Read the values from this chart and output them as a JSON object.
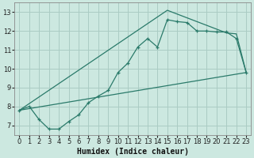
{
  "xlabel": "Humidex (Indice chaleur)",
  "background_color": "#cce8e0",
  "grid_color": "#aaccc4",
  "line_color": "#2a7a6a",
  "xlim": [
    -0.5,
    23.5
  ],
  "ylim": [
    6.5,
    13.5
  ],
  "xticks": [
    0,
    1,
    2,
    3,
    4,
    5,
    6,
    7,
    8,
    9,
    10,
    11,
    12,
    13,
    14,
    15,
    16,
    17,
    18,
    19,
    20,
    21,
    22,
    23
  ],
  "yticks": [
    7,
    8,
    9,
    10,
    11,
    12,
    13
  ],
  "curve1_x": [
    0,
    1,
    2,
    3,
    4,
    5,
    6,
    7,
    8,
    9,
    10,
    11,
    12,
    13,
    14,
    15,
    16,
    17,
    18,
    19,
    20,
    21,
    22,
    23
  ],
  "curve1_y": [
    7.8,
    8.0,
    7.3,
    6.8,
    6.8,
    7.2,
    7.55,
    8.2,
    8.55,
    8.85,
    9.8,
    10.3,
    11.15,
    11.6,
    11.15,
    12.6,
    12.5,
    12.45,
    12.0,
    12.0,
    11.95,
    11.95,
    11.6,
    9.8
  ],
  "curve2_x": [
    0,
    23
  ],
  "curve2_y": [
    7.8,
    9.8
  ],
  "curve3_x": [
    0,
    15,
    21,
    22,
    23
  ],
  "curve3_y": [
    7.8,
    13.1,
    11.9,
    11.85,
    9.8
  ],
  "xlabel_fontsize": 7,
  "tick_fontsize": 6
}
